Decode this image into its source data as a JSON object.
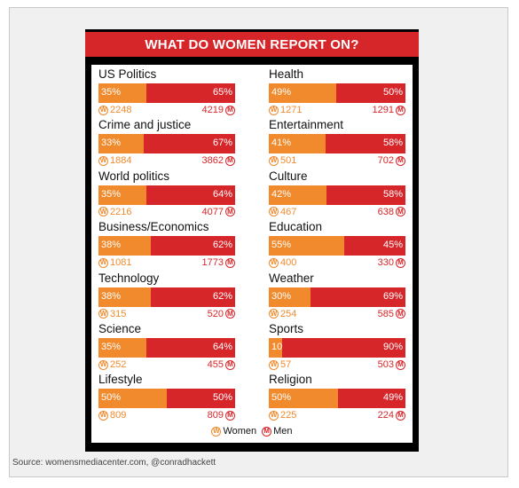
{
  "source": "Source: womensmediacenter.com, @conradhackett",
  "legend": {
    "women": "Women",
    "men": "Men",
    "women_symbol": "W",
    "men_symbol": "M"
  },
  "colors": {
    "women": "#f08a2c",
    "men": "#d6262a",
    "title_bg": "#d6262a",
    "card_bg": "#000000"
  },
  "chart_data": {
    "type": "bar",
    "title": "WHAT DO WOMEN REPORT ON?",
    "subtitle": "",
    "categories": [
      "US Politics",
      "Crime and justice",
      "World politics",
      "Business/Economics",
      "Technology",
      "Science",
      "Lifestyle",
      "Health",
      "Entertainment",
      "Culture",
      "Education",
      "Weather",
      "Sports",
      "Religion"
    ],
    "series": [
      {
        "name": "Women",
        "values": [
          35,
          33,
          35,
          38,
          38,
          35,
          50,
          49,
          41,
          42,
          55,
          30,
          10,
          50
        ],
        "labels": [
          "35%",
          "33%",
          "35%",
          "38%",
          "38%",
          "35%",
          "50%",
          "49%",
          "41%",
          "42%",
          "55%",
          "30%",
          "10%",
          "50%"
        ],
        "counts": [
          "2248",
          "1884",
          "2216",
          "1081",
          "315",
          "252",
          "809",
          "1271",
          "501",
          "467",
          "400",
          "254",
          "57",
          "225"
        ]
      },
      {
        "name": "Men",
        "values": [
          65,
          67,
          64,
          62,
          62,
          64,
          50,
          50,
          58,
          58,
          45,
          69,
          90,
          49
        ],
        "labels": [
          "65%",
          "67%",
          "64%",
          "62%",
          "62%",
          "64%",
          "50%",
          "50%",
          "58%",
          "58%",
          "45%",
          "69%",
          "90%",
          "49%"
        ],
        "counts": [
          "4219",
          "3862",
          "4077",
          "1773",
          "520",
          "455",
          "809",
          "1291",
          "702",
          "638",
          "330",
          "585",
          "503",
          "224"
        ]
      }
    ],
    "legend_position": "bottom",
    "orientation": "horizontal-stacked"
  }
}
